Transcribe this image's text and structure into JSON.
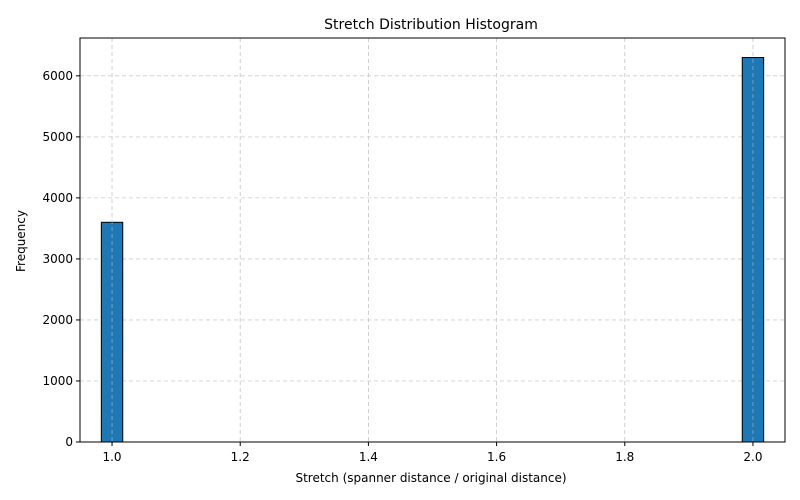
{
  "chart_data": {
    "type": "bar",
    "title": "Stretch Distribution Histogram",
    "xlabel": "Stretch (spanner distance / original distance)",
    "ylabel": "Frequency",
    "xlim": [
      0.95,
      2.05
    ],
    "ylim": [
      0,
      6620
    ],
    "xticks": [
      1.0,
      1.2,
      1.4,
      1.6,
      1.8,
      2.0
    ],
    "xtick_labels": [
      "1.0",
      "1.2",
      "1.4",
      "1.6",
      "1.8",
      "2.0"
    ],
    "yticks": [
      0,
      1000,
      2000,
      3000,
      4000,
      5000,
      6000
    ],
    "ytick_labels": [
      "0",
      "1000",
      "2000",
      "3000",
      "4000",
      "5000",
      "6000"
    ],
    "grid": true,
    "bar_color": "#1f77b4",
    "edge_color": "#000000",
    "grid_color": "#cccccc",
    "bins": [
      {
        "start": 0.9833,
        "end": 1.0167,
        "count": 3600
      },
      {
        "start": 1.9833,
        "end": 2.0167,
        "count": 6300
      }
    ]
  }
}
